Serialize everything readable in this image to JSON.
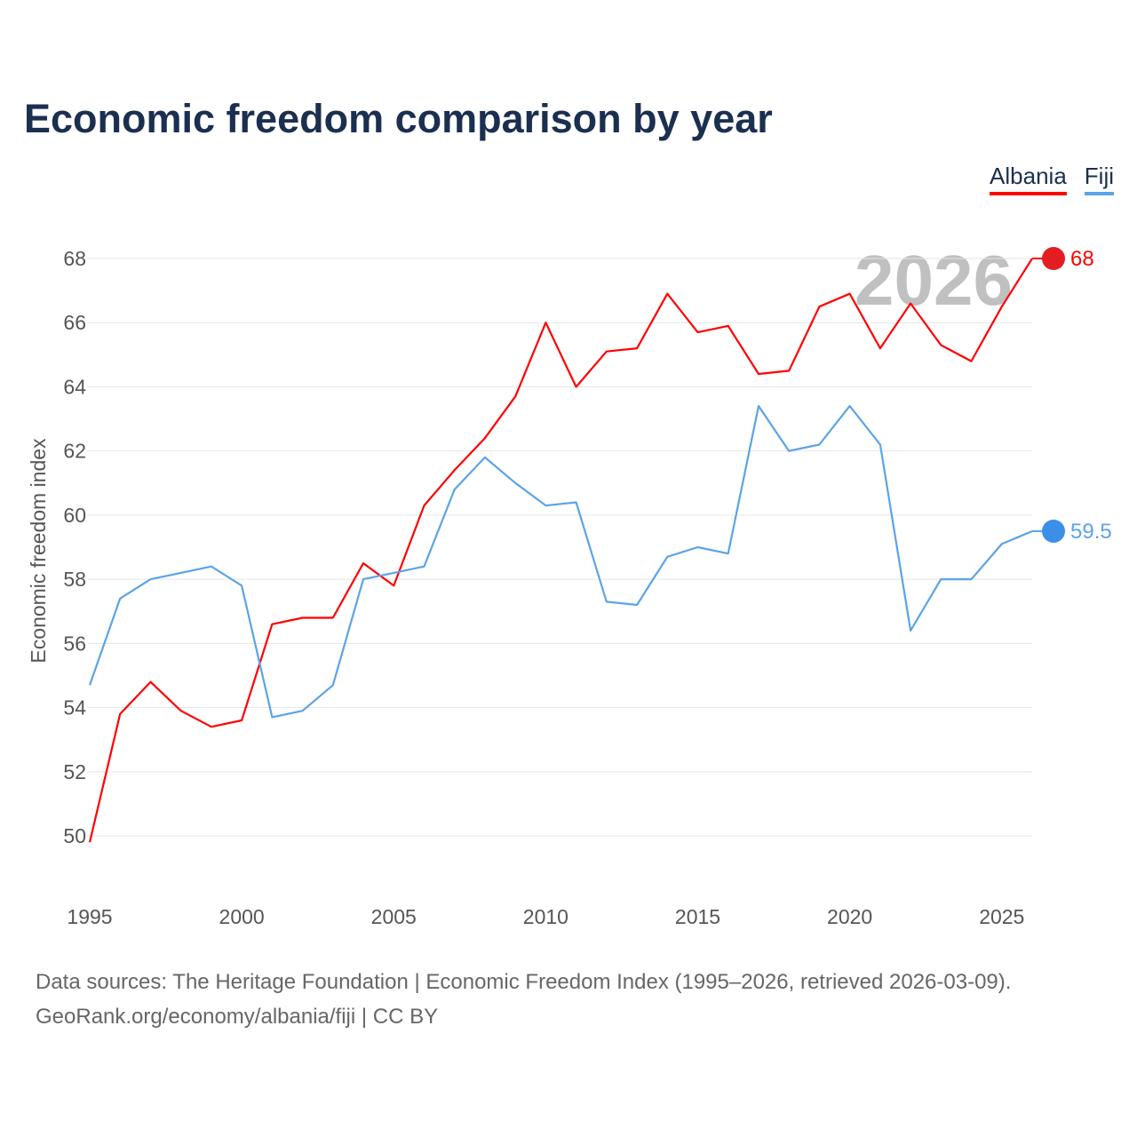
{
  "chart_data": {
    "type": "line",
    "title": "Economic freedom comparison by year",
    "xlabel": "",
    "ylabel": "Economic freedom index",
    "xlim": [
      1995,
      2026
    ],
    "ylim": [
      48,
      69
    ],
    "grid": true,
    "legend_position": "top-right",
    "x_ticks": [
      "1995",
      "2000",
      "2005",
      "2010",
      "2015",
      "2020",
      "2025"
    ],
    "y_ticks": [
      "50",
      "52",
      "54",
      "56",
      "58",
      "60",
      "62",
      "64",
      "66",
      "68"
    ],
    "year_watermark": "2026",
    "x": [
      1995,
      1996,
      1997,
      1998,
      1999,
      2000,
      2001,
      2002,
      2003,
      2004,
      2005,
      2006,
      2007,
      2008,
      2009,
      2010,
      2011,
      2012,
      2013,
      2014,
      2015,
      2016,
      2017,
      2018,
      2019,
      2020,
      2021,
      2022,
      2023,
      2024,
      2025,
      2026
    ],
    "series": [
      {
        "name": "Albania",
        "color": "#ff0000",
        "end_label": "68",
        "values": [
          49.8,
          53.8,
          54.8,
          53.9,
          53.4,
          53.6,
          56.6,
          56.8,
          56.8,
          58.5,
          57.8,
          60.3,
          61.4,
          62.4,
          63.7,
          66.0,
          64.0,
          65.1,
          65.2,
          66.9,
          65.7,
          65.9,
          64.4,
          64.5,
          66.5,
          66.9,
          65.2,
          66.6,
          65.3,
          64.8,
          66.5,
          68.0
        ]
      },
      {
        "name": "Fiji",
        "color": "#5ba3e8",
        "end_label": "59.5",
        "values": [
          54.7,
          57.4,
          58.0,
          58.2,
          58.4,
          57.8,
          53.7,
          53.9,
          54.7,
          58.0,
          58.2,
          58.4,
          60.8,
          61.8,
          61.0,
          60.3,
          60.4,
          57.3,
          57.2,
          58.7,
          59.0,
          58.8,
          63.4,
          62.0,
          62.2,
          63.4,
          62.2,
          56.4,
          58.0,
          58.0,
          59.1,
          59.5
        ]
      }
    ]
  },
  "footer": {
    "line1": "Data sources: The Heritage Foundation | Economic Freedom Index (1995–2026, retrieved 2026-03-09).",
    "line2": "GeoRank.org/economy/albania/fiji | CC BY"
  }
}
